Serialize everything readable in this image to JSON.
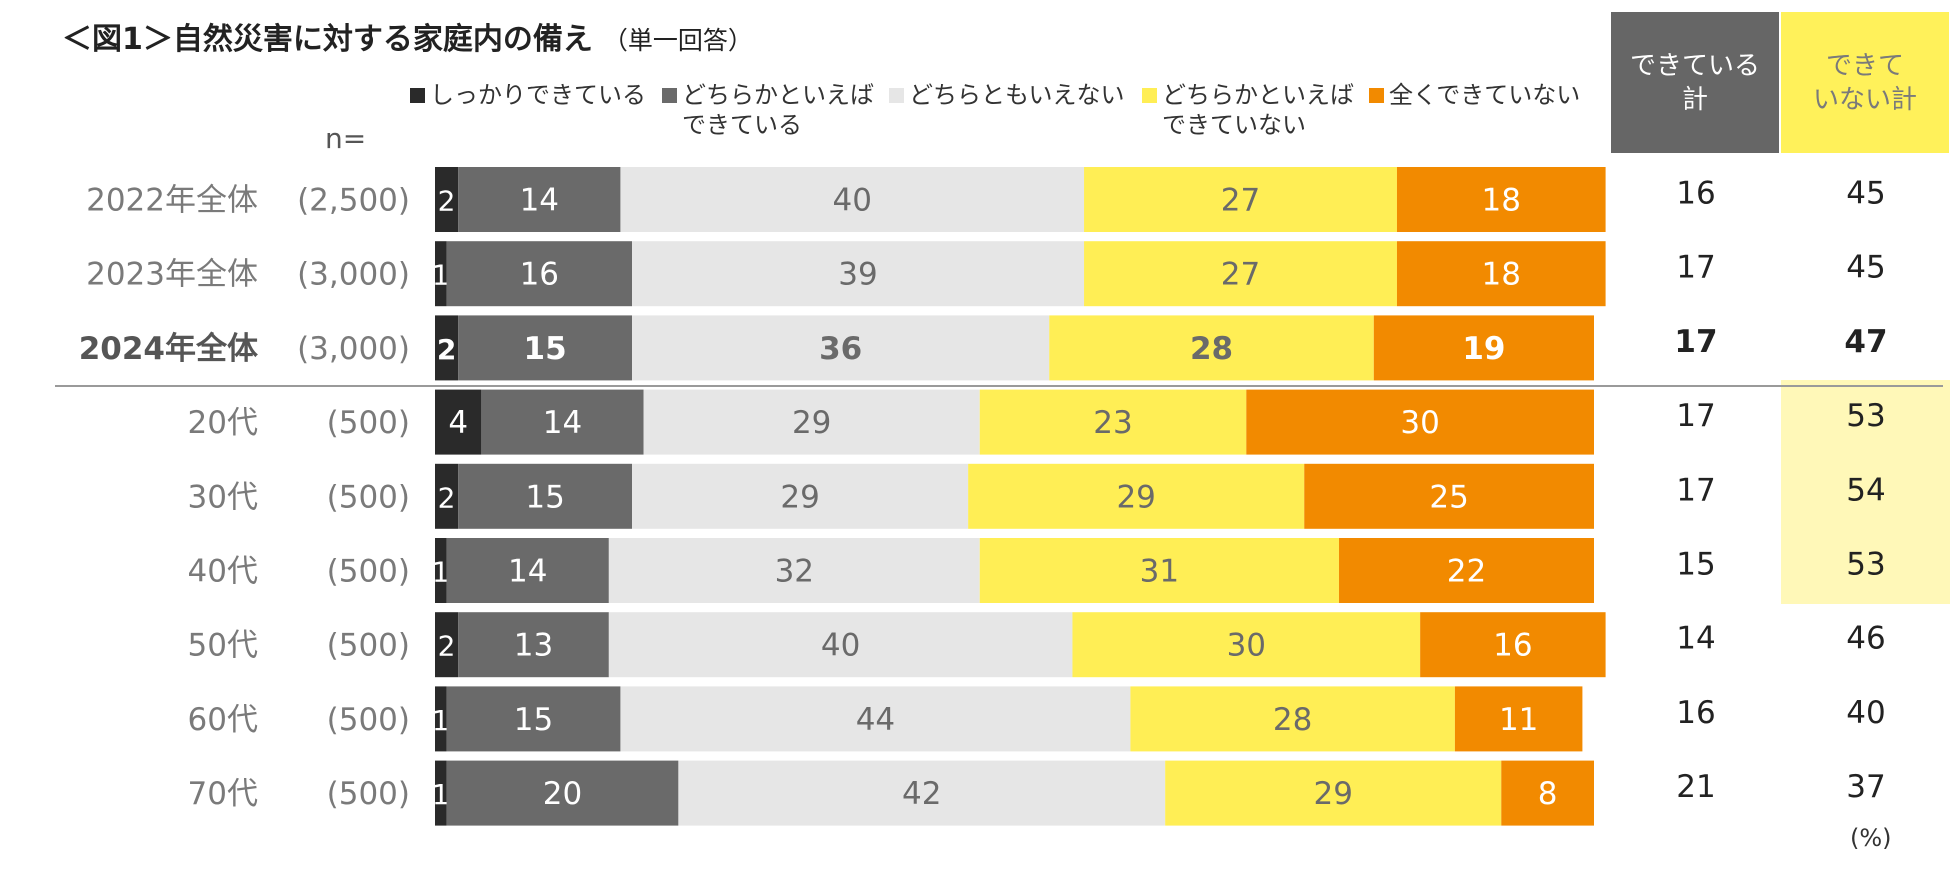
{
  "title": "＜図1＞自然災害に対する家庭内の備え",
  "title_sub": "（単一回答）",
  "n_label": "n=",
  "percent_label": "(%)",
  "colors": {
    "series": [
      "#2A2A2A",
      "#6A6A6A",
      "#E6E6E6",
      "#FFEE55",
      "#F28A00"
    ],
    "text_on": [
      "#ffffff",
      "#ffffff",
      "#6A6A6A",
      "#6A6A6A",
      "#ffffff"
    ]
  },
  "legend": [
    {
      "label": "しっかりできている"
    },
    {
      "label": "どちらかといえば\nできている"
    },
    {
      "label": "どちらともいえない"
    },
    {
      "label": "どちらかといえば\nできていない"
    },
    {
      "label": "全くできていない"
    }
  ],
  "totals_header": {
    "yes": "できている\n計",
    "no": "できて\nいない計"
  },
  "chart_data": {
    "type": "bar",
    "orientation": "horizontal",
    "stacked": true,
    "categories": [
      "2022年全体",
      "2023年全体",
      "2024年全体",
      "20代",
      "30代",
      "40代",
      "50代",
      "60代",
      "70代"
    ],
    "n": [
      "(2,500)",
      "(3,000)",
      "(3,000)",
      "(500)",
      "(500)",
      "(500)",
      "(500)",
      "(500)",
      "(500)"
    ],
    "bold_rows": [
      2
    ],
    "series": [
      {
        "name": "しっかりできている",
        "values": [
          2,
          1,
          2,
          4,
          2,
          1,
          2,
          1,
          1
        ]
      },
      {
        "name": "どちらかといえばできている",
        "values": [
          14,
          16,
          15,
          14,
          15,
          14,
          13,
          15,
          20
        ]
      },
      {
        "name": "どちらともいえない",
        "values": [
          40,
          39,
          36,
          29,
          29,
          32,
          40,
          44,
          42
        ]
      },
      {
        "name": "どちらかといえばできていない",
        "values": [
          27,
          27,
          28,
          23,
          29,
          31,
          30,
          28,
          29
        ]
      },
      {
        "name": "全くできていない",
        "values": [
          18,
          18,
          19,
          30,
          25,
          22,
          16,
          11,
          8
        ]
      }
    ],
    "totals": {
      "できている計": [
        16,
        17,
        17,
        17,
        17,
        15,
        14,
        16,
        21
      ],
      "できていない計": [
        45,
        45,
        47,
        53,
        54,
        53,
        46,
        40,
        37
      ]
    },
    "xlim": [
      0,
      100
    ]
  }
}
